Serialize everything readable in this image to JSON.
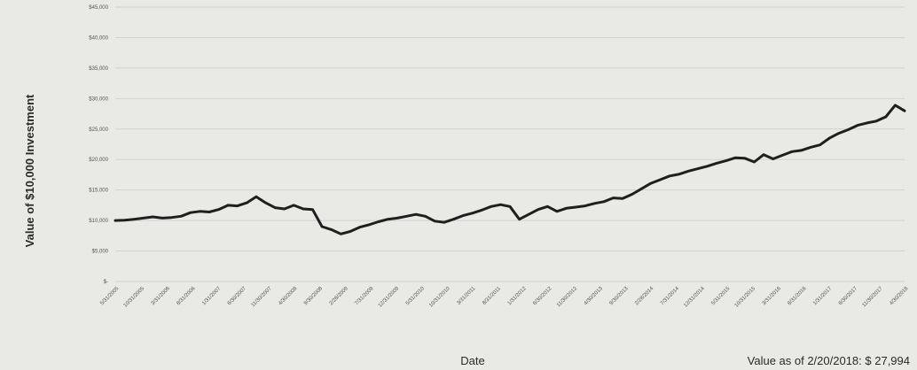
{
  "chart_data": {
    "type": "line",
    "title": "",
    "xlabel": "Date",
    "ylabel": "Value of $10,000 Investment",
    "ylim": [
      0,
      45000
    ],
    "yticks": [
      0,
      5000,
      10000,
      15000,
      20000,
      25000,
      30000,
      35000,
      40000,
      45000
    ],
    "ytick_labels": [
      "$-",
      "$5,000",
      "$10,000",
      "$15,000",
      "$20,000",
      "$25,000",
      "$30,000",
      "$35,000",
      "$40,000",
      "$45,000"
    ],
    "x_tick_labels": [
      "5/31/2005",
      "10/31/2005",
      "3/31/2006",
      "8/31/2006",
      "1/31/2007",
      "6/30/2007",
      "11/30/2007",
      "4/30/2008",
      "9/30/2008",
      "2/28/2009",
      "7/31/2009",
      "12/31/2009",
      "5/31/2010",
      "10/31/2010",
      "3/31/2011",
      "8/31/2011",
      "1/31/2012",
      "6/30/2012",
      "11/30/2012",
      "4/30/2013",
      "9/30/2013",
      "2/28/2014",
      "7/31/2014",
      "12/31/2014",
      "5/31/2015",
      "10/31/2015",
      "3/31/2016",
      "8/31/2016",
      "1/31/2017",
      "6/30/2017",
      "11/30/2017",
      "4/30/2018"
    ],
    "grid": true,
    "series": [
      {
        "name": "",
        "color": "#1f1f1f",
        "values": [
          10000,
          10050,
          10200,
          10400,
          10600,
          10400,
          10500,
          10700,
          11300,
          11500,
          11400,
          11800,
          12500,
          12400,
          12900,
          13900,
          12900,
          12100,
          11900,
          12500,
          11900,
          11800,
          9000,
          8500,
          7800,
          8200,
          8900,
          9300,
          9800,
          10200,
          10400,
          10700,
          11000,
          10700,
          9900,
          9700,
          10200,
          10800,
          11200,
          11700,
          12300,
          12600,
          12300,
          10200,
          11000,
          11800,
          12300,
          11500,
          12000,
          12200,
          12400,
          12800,
          13100,
          13700,
          13600,
          14300,
          15200,
          16100,
          16700,
          17300,
          17600,
          18100,
          18500,
          18900,
          19400,
          19800,
          20300,
          20200,
          19600,
          20800,
          20100,
          20700,
          21300,
          21500,
          22000,
          22400,
          23500,
          24300,
          24900,
          25600,
          26000,
          26300,
          27000,
          28900,
          27994
        ]
      }
    ]
  },
  "footer": {
    "value_label": "Value as of  2/20/2018:  $ 27,994"
  }
}
